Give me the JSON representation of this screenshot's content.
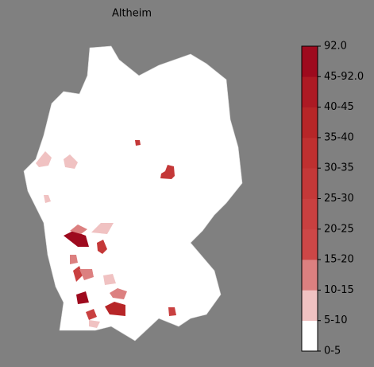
{
  "title": "Altheim",
  "colorbar": {
    "labels": [
      "0-5",
      "5-10",
      "10-15",
      "15-20",
      "20-25",
      "25-30",
      "30-35",
      "35-40",
      "40-45",
      "45-92.0",
      "92.0"
    ],
    "colors": [
      "#ffffff",
      "#f0c2c2",
      "#dc8080",
      "#cd4747",
      "#c94040",
      "#c43838",
      "#bf3030",
      "#b72628",
      "#ad1a24",
      "#9e0a1e"
    ]
  }
}
